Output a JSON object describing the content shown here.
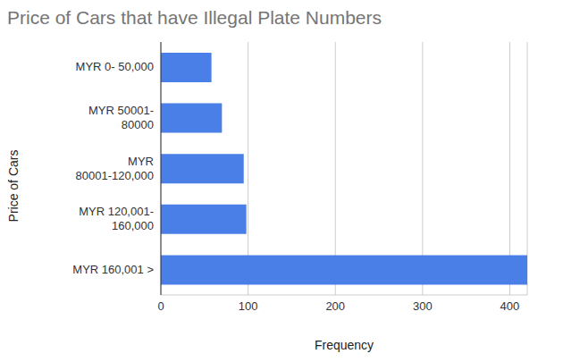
{
  "chart_data": {
    "type": "bar",
    "title": "Price of Cars that have Illegal Plate Numbers",
    "xlabel": "Frequency",
    "ylabel": "Price of Cars",
    "categories": [
      "MYR 0- 50,000",
      "MYR 50001- 80000",
      "MYR 80001-120,000",
      "MYR 120,001- 160,000",
      "MYR 160,001 >"
    ],
    "values": [
      58,
      70,
      95,
      98,
      420
    ],
    "color": "#4a7fe8",
    "orientation": "horizontal",
    "xlim": [
      0,
      420
    ],
    "xticks": [
      0,
      100,
      200,
      300,
      400
    ],
    "grid": true
  }
}
